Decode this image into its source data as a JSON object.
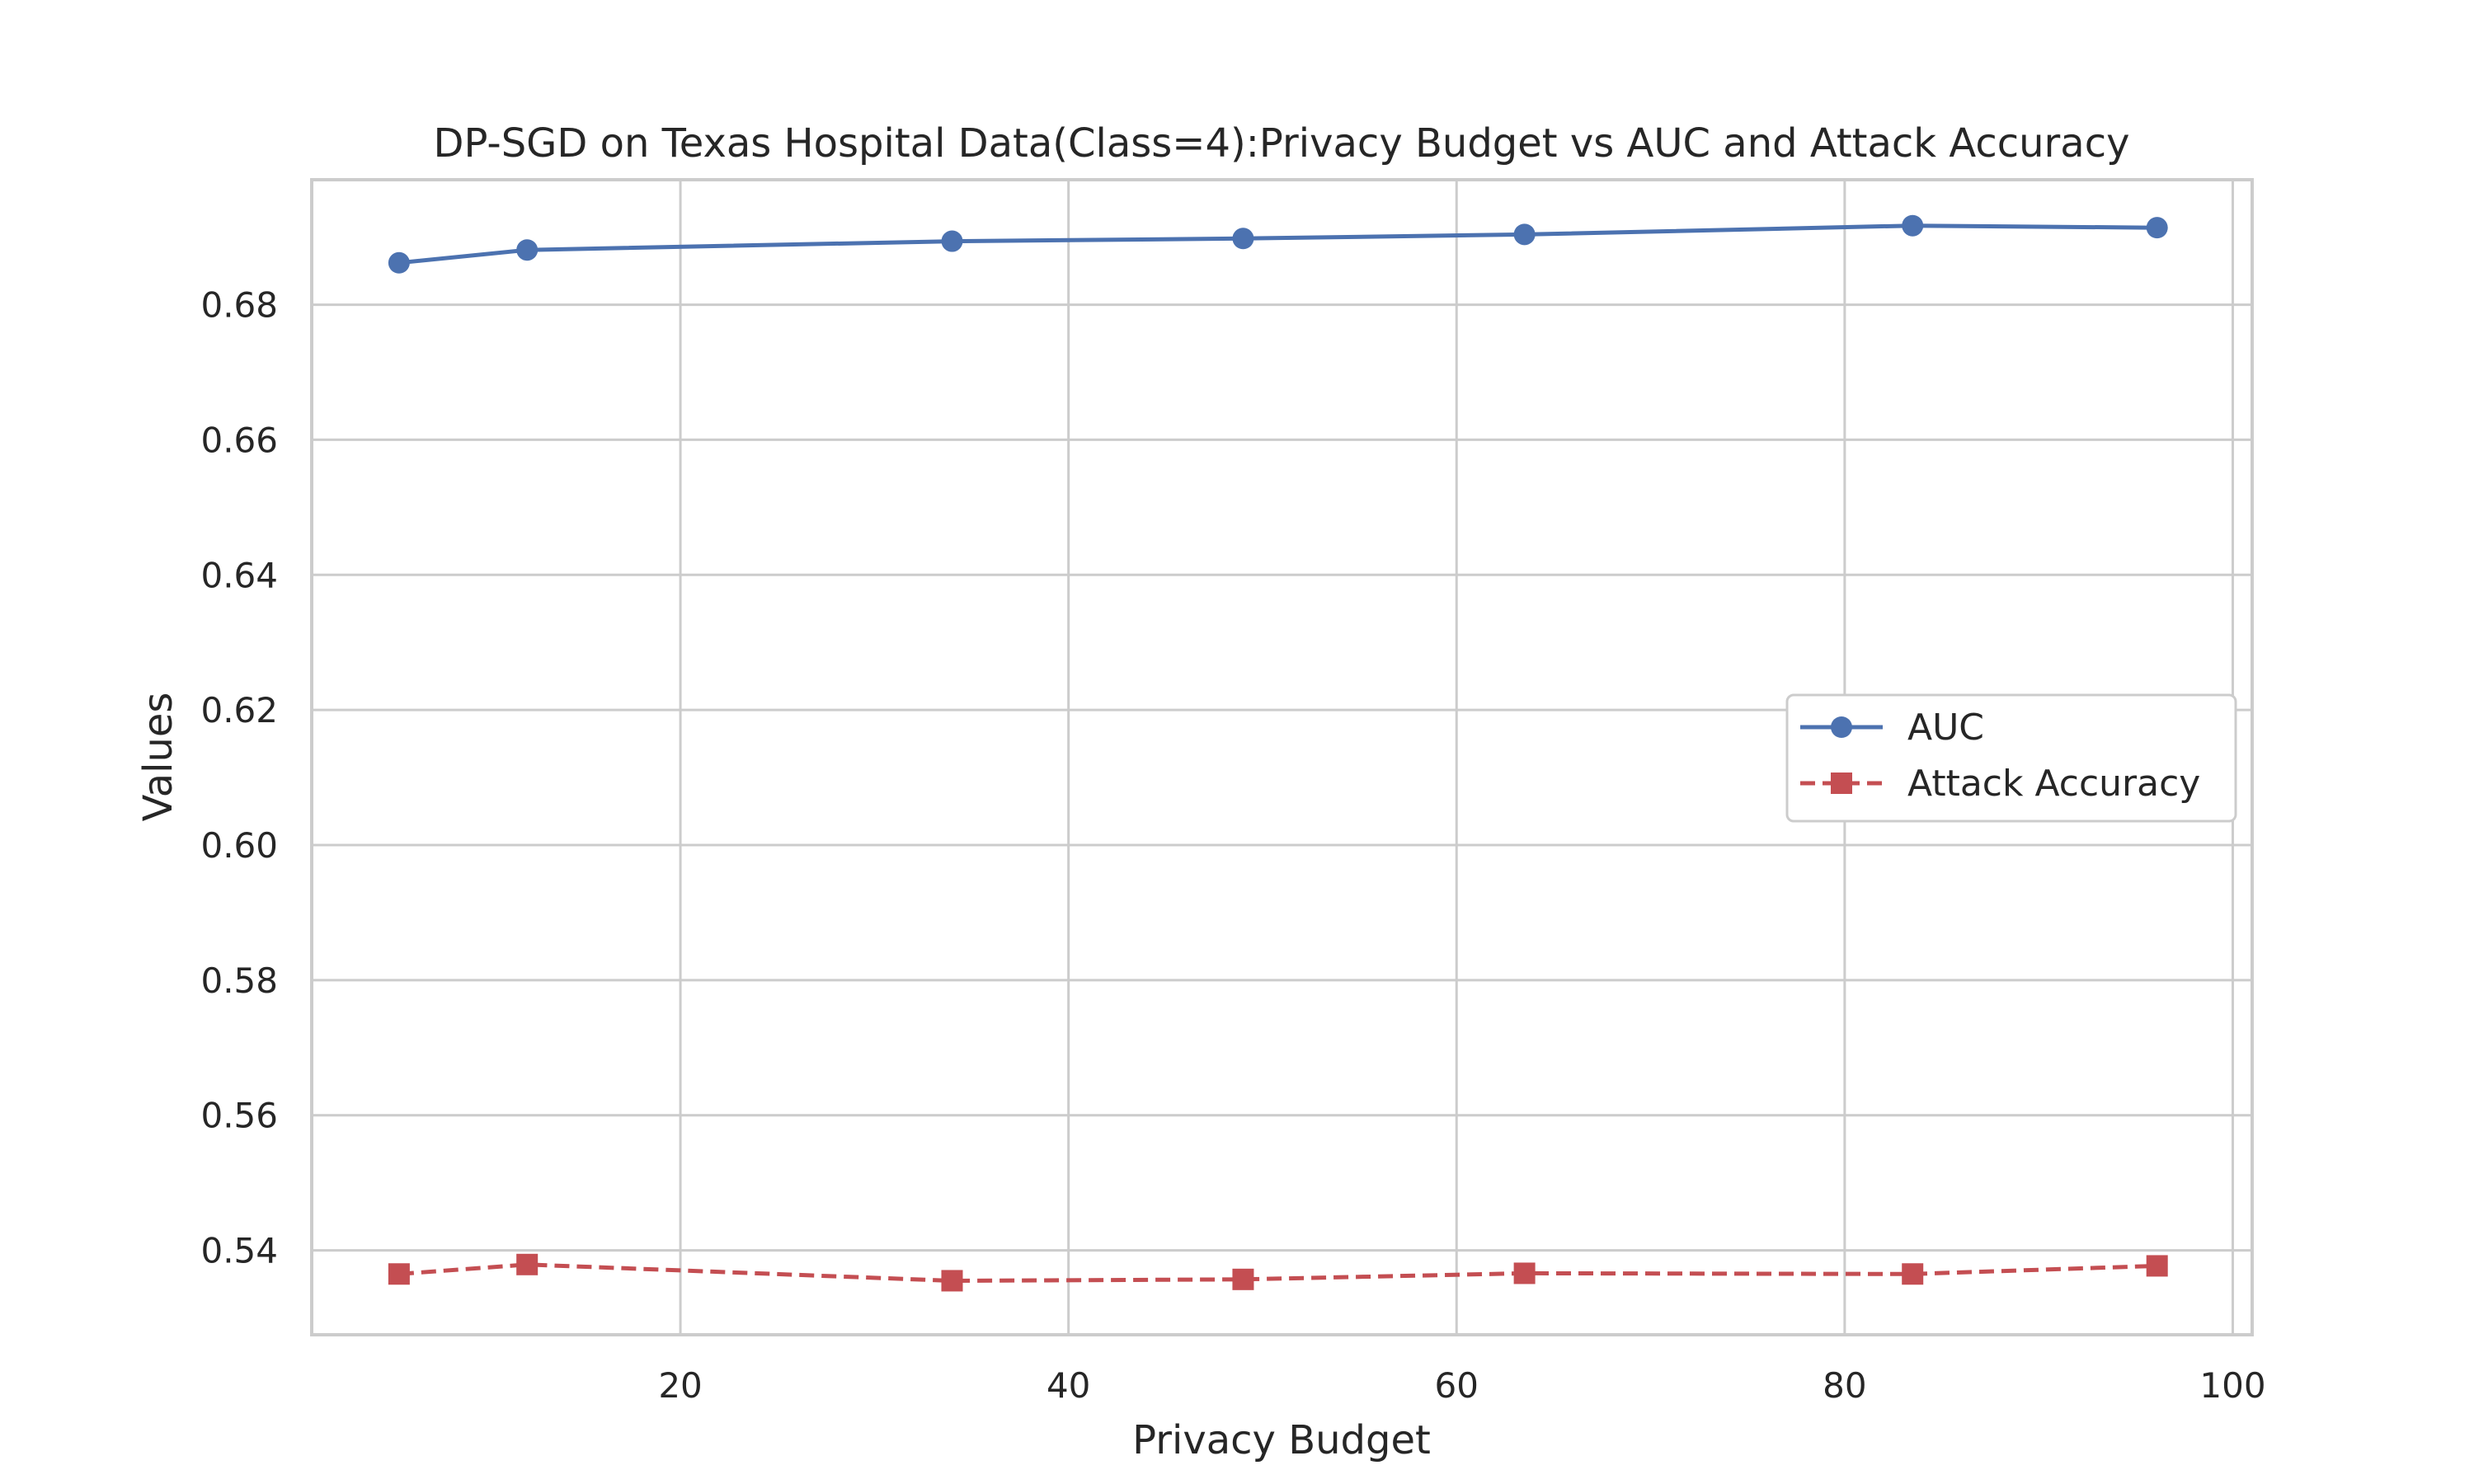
{
  "chart_data": {
    "type": "line",
    "title": "DP-SGD on Texas Hospital Data(Class=4):Privacy Budget vs AUC and Attack Accuracy",
    "xlabel": "Privacy Budget",
    "ylabel": "Values",
    "xlim": [
      1,
      101
    ],
    "ylim": [
      0.5275,
      0.6985
    ],
    "xticks": [
      20,
      40,
      60,
      80,
      100
    ],
    "yticks": [
      0.54,
      0.56,
      0.58,
      0.6,
      0.62,
      0.64,
      0.66,
      0.68
    ],
    "ytick_labels": [
      "0.54",
      "0.56",
      "0.58",
      "0.60",
      "0.62",
      "0.64",
      "0.66",
      "0.68"
    ],
    "xtick_labels": [
      "20",
      "40",
      "60",
      "80",
      "100"
    ],
    "grid": true,
    "legend_position": "center-right",
    "series": [
      {
        "name": "AUC",
        "color": "#4c72b0",
        "marker": "circle",
        "linestyle": "solid",
        "x": [
          5.5,
          12.1,
          34.0,
          49.0,
          63.5,
          83.5,
          96.1
        ],
        "y": [
          0.6862,
          0.6881,
          0.6894,
          0.6898,
          0.6904,
          0.6917,
          0.6914
        ]
      },
      {
        "name": "Attack Accuracy",
        "color": "#c44e52",
        "marker": "square",
        "linestyle": "dashed",
        "x": [
          5.5,
          12.1,
          34.0,
          49.0,
          63.5,
          83.5,
          96.1
        ],
        "y": [
          0.5365,
          0.5379,
          0.5355,
          0.5357,
          0.5366,
          0.5365,
          0.5377
        ]
      }
    ]
  }
}
